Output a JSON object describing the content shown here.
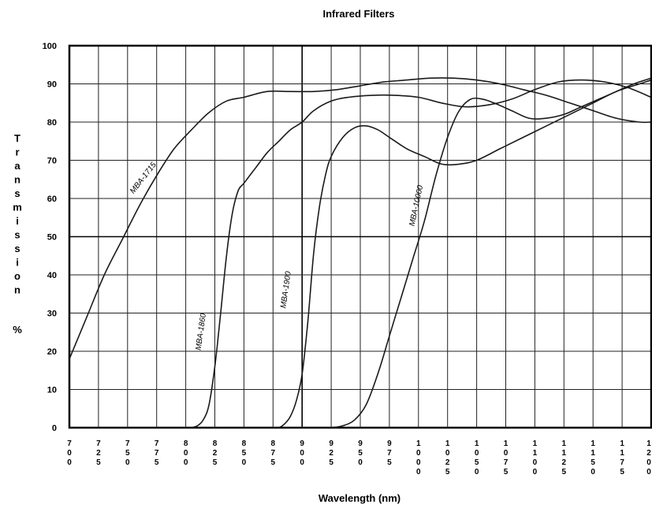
{
  "chart_data": {
    "type": "line",
    "title": "Infrared Filters",
    "xlabel": "Wavelength (nm)",
    "ylabel": "Transmission",
    "ylabel_chars": [
      "T",
      "r",
      "a",
      "n",
      "s",
      "m",
      "i",
      "s",
      "s",
      "i",
      "o",
      "n"
    ],
    "ylabel_unit": "%",
    "xlim": [
      700,
      1200
    ],
    "ylim": [
      0,
      100
    ],
    "x_ticks": [
      700,
      725,
      750,
      775,
      800,
      825,
      850,
      875,
      900,
      925,
      950,
      975,
      1000,
      1025,
      1050,
      1075,
      1100,
      1125,
      1150,
      1175,
      1200
    ],
    "y_ticks": [
      0,
      10,
      20,
      30,
      40,
      50,
      60,
      70,
      80,
      90,
      100
    ],
    "grid": true,
    "series": [
      {
        "name": "MBA-1715",
        "label_at": [
          765,
          65
        ],
        "label_angle": -52,
        "x": [
          700,
          715,
          730,
          745,
          760,
          775,
          790,
          805,
          820,
          835,
          850,
          870,
          890,
          910,
          930,
          950,
          970,
          990,
          1010,
          1030,
          1050,
          1070,
          1090,
          1110,
          1130,
          1150,
          1170,
          1190,
          1200
        ],
        "y": [
          18,
          29,
          40,
          49,
          58,
          66,
          73,
          78,
          82.5,
          85.5,
          86.5,
          88,
          88,
          88,
          88.5,
          89.5,
          90.5,
          91,
          91.5,
          91.5,
          91,
          90,
          88.5,
          87,
          85,
          83,
          81,
          80,
          80
        ]
      },
      {
        "name": "MBA-1860",
        "label_at": [
          815,
          25
        ],
        "label_angle": -82,
        "x": [
          800,
          805,
          810,
          815,
          820,
          825,
          830,
          835,
          840,
          845,
          850,
          860,
          870,
          880,
          890,
          900,
          910,
          925,
          940,
          960,
          980,
          1000,
          1020,
          1040,
          1060,
          1080,
          1100,
          1120,
          1140,
          1160,
          1180,
          1200
        ],
        "y": [
          0,
          0,
          0.5,
          2,
          6,
          16,
          30,
          45,
          56,
          62,
          64,
          68,
          72,
          75,
          78,
          80,
          83,
          85.5,
          86.5,
          87,
          87,
          86.5,
          85,
          84,
          84.5,
          86,
          88.5,
          90.5,
          91,
          90.5,
          89,
          86.5
        ]
      },
      {
        "name": "MBA-1900",
        "label_at": [
          888,
          36
        ],
        "label_angle": -82,
        "x": [
          875,
          880,
          885,
          890,
          895,
          900,
          905,
          910,
          915,
          920,
          925,
          935,
          945,
          955,
          965,
          975,
          990,
          1005,
          1020,
          1035,
          1050,
          1070,
          1090,
          1110,
          1130,
          1150,
          1170,
          1190,
          1200
        ],
        "y": [
          0,
          0,
          1,
          3,
          7,
          14,
          28,
          46,
          58,
          66,
          71,
          76,
          78.5,
          79,
          78,
          76,
          73,
          71,
          69,
          69,
          70,
          73,
          76,
          79,
          82,
          85,
          88,
          90,
          91
        ]
      },
      {
        "name": "MBA-10000",
        "label_at": [
          1000,
          58
        ],
        "label_angle": -78,
        "x": [
          925,
          935,
          945,
          955,
          965,
          975,
          985,
          995,
          1005,
          1015,
          1025,
          1035,
          1045,
          1055,
          1065,
          1080,
          1095,
          1110,
          1125,
          1140,
          1155,
          1170,
          1185,
          1200
        ],
        "y": [
          0,
          0.5,
          2,
          6,
          14,
          24,
          34,
          44,
          54,
          66,
          76,
          83,
          86,
          86,
          85,
          83,
          81,
          81,
          82,
          84,
          86,
          88,
          90,
          91.5
        ]
      }
    ]
  }
}
